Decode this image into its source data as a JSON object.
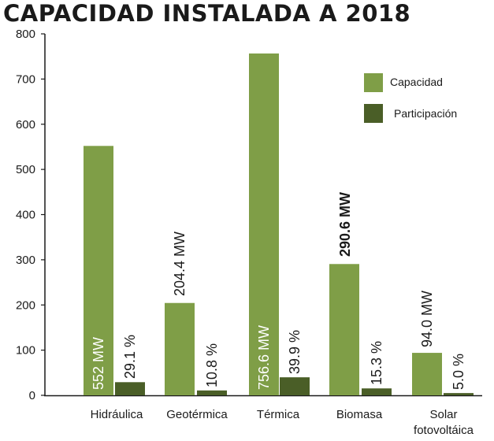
{
  "chart_data": {
    "type": "bar",
    "title": "CAPACIDAD INSTALADA A 2018",
    "categories": [
      [
        "Hidráulica"
      ],
      [
        "Geotérmica"
      ],
      [
        "Térmica"
      ],
      [
        "Biomasa"
      ],
      [
        "Solar",
        "fotovoltáica"
      ]
    ],
    "series": [
      {
        "name": "Capacidad",
        "color": "#7f9e47",
        "values": [
          552,
          204.4,
          756.6,
          290.6,
          94.0
        ],
        "labels": [
          "552 MW",
          "204.4 MW",
          "756.6 MW",
          "290.6 MW",
          "94.0 MW"
        ]
      },
      {
        "name": "Participación",
        "color": "#4a5e27",
        "values": [
          29.1,
          10.8,
          39.9,
          15.3,
          5.0
        ],
        "labels": [
          "29.1 %",
          "10.8 %",
          "39.9 %",
          "15.3 %",
          "5.0 %"
        ]
      }
    ],
    "ylim": [
      0,
      800
    ],
    "yticks": [
      0,
      100,
      200,
      300,
      400,
      500,
      600,
      700,
      800
    ],
    "grid": false,
    "legend_position": "top-right"
  }
}
